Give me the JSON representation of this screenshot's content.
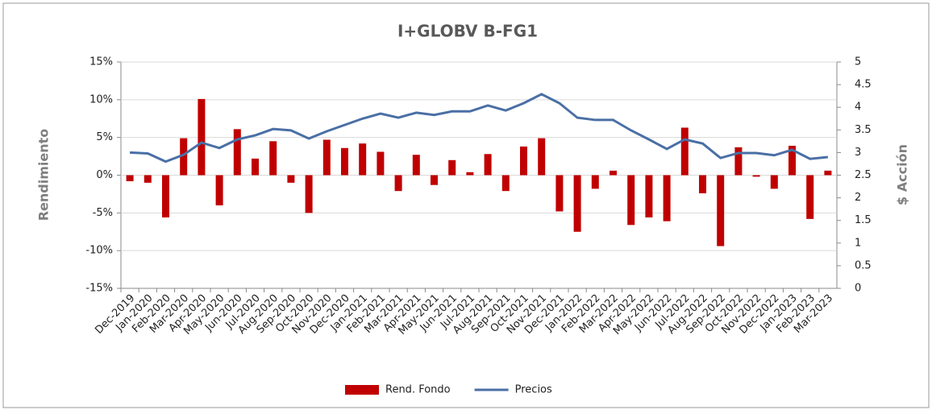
{
  "chart_data": {
    "type": "bar_line",
    "title": "I+GLOBV B-FG1",
    "y_label": "Rendimiento",
    "y2_label": "$ Acción",
    "categories": [
      "Dec-2019",
      "Jan-2020",
      "Feb-2020",
      "Mar-2020",
      "Apr-2020",
      "May-2020",
      "Jun-2020",
      "Jul-2020",
      "Aug-2020",
      "Sep-2020",
      "Oct-2020",
      "Nov-2020",
      "Dec-2020",
      "Jan-2021",
      "Feb-2021",
      "Mar-2021",
      "Apr-2021",
      "May-2021",
      "Jun-2021",
      "Jul-2021",
      "Aug-2021",
      "Sep-2021",
      "Oct-2021",
      "Nov-2021",
      "Dec-2021",
      "Jan-2022",
      "Feb-2022",
      "Mar-2022",
      "Apr-2022",
      "May-2022",
      "Jun-2022",
      "Jul-2022",
      "Aug-2022",
      "Sep-2022",
      "Oct-2022",
      "Nov-2022",
      "Dec-2022",
      "Jan-2023",
      "Feb-2023",
      "Mar-2023"
    ],
    "series": [
      {
        "name": "Rend. Fondo",
        "color": "#c00000",
        "kind": "bar",
        "values": [
          -0.8,
          -1.0,
          -5.6,
          4.9,
          10.1,
          -4.0,
          6.1,
          2.2,
          4.5,
          -1.0,
          -5.0,
          4.7,
          3.6,
          4.2,
          3.1,
          -2.1,
          2.7,
          -1.3,
          2.0,
          0.4,
          2.8,
          -2.1,
          3.8,
          4.9,
          -4.8,
          -7.5,
          -1.8,
          0.6,
          -6.6,
          -5.6,
          -6.1,
          6.3,
          -2.4,
          -9.4,
          3.7,
          -0.2,
          -1.8,
          3.9,
          -5.8,
          0.6
        ]
      },
      {
        "name": "Precios",
        "color": "#4a6fa5",
        "kind": "line",
        "axis": "y2",
        "values": [
          3.0,
          2.98,
          2.8,
          2.95,
          3.22,
          3.1,
          3.29,
          3.38,
          3.52,
          3.49,
          3.31,
          3.47,
          3.61,
          3.75,
          3.86,
          3.77,
          3.88,
          3.83,
          3.91,
          3.91,
          4.04,
          3.93,
          4.09,
          4.29,
          4.09,
          3.77,
          3.72,
          3.72,
          3.49,
          3.29,
          3.08,
          3.29,
          3.2,
          2.88,
          2.99,
          2.99,
          2.94,
          3.06,
          2.86,
          2.9
        ]
      }
    ],
    "ylim": [
      -15,
      15
    ],
    "yticks": [
      {
        "value": -15,
        "label": "-15%"
      },
      {
        "value": -10,
        "label": "-10%"
      },
      {
        "value": -5,
        "label": "-5%"
      },
      {
        "value": 0,
        "label": "0%"
      },
      {
        "value": 5,
        "label": "5%"
      },
      {
        "value": 10,
        "label": "10%"
      },
      {
        "value": 15,
        "label": "15%"
      }
    ],
    "y2lim": [
      0,
      5
    ],
    "y2ticks": [
      0,
      0.5,
      1,
      1.5,
      2,
      2.5,
      3,
      3.5,
      4,
      4.5,
      5
    ],
    "legend": "bottom"
  }
}
